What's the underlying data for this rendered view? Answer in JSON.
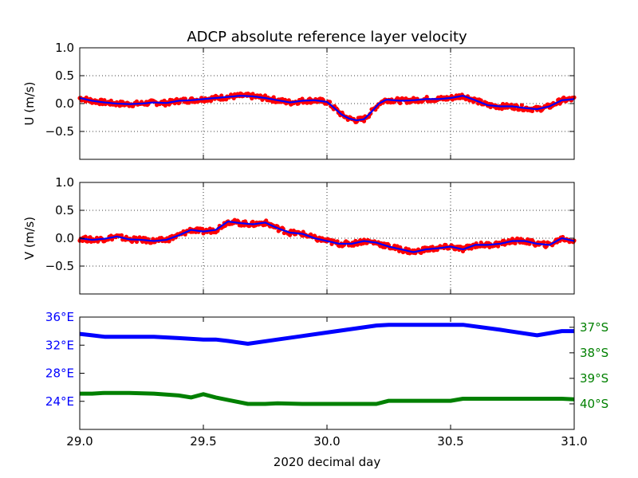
{
  "chart_data": [
    {
      "type": "scatter",
      "title": "ADCP absolute reference layer velocity",
      "ylabel": "U (m/s)",
      "xlabel": "",
      "xlim": [
        29.0,
        31.0
      ],
      "ylim": [
        -1.0,
        1.0
      ],
      "y_ticks": [
        -0.5,
        0.0,
        0.5,
        1.0
      ],
      "y_tick_labels": [
        "−0.5",
        "0.0",
        "0.5",
        "1.0"
      ],
      "x_ticks": [
        29.0,
        29.5,
        30.0,
        30.5,
        31.0
      ],
      "grid": true,
      "colors": {
        "points": "#ff0000",
        "smooth": "#0000ff"
      },
      "series": [
        {
          "kind": "points-with-smooth-line",
          "x": [
            29.0,
            29.05,
            29.1,
            29.15,
            29.2,
            29.25,
            29.3,
            29.35,
            29.4,
            29.45,
            29.5,
            29.55,
            29.6,
            29.65,
            29.7,
            29.75,
            29.8,
            29.85,
            29.9,
            29.95,
            30.0,
            30.03,
            30.06,
            30.09,
            30.12,
            30.15,
            30.18,
            30.21,
            30.24,
            30.3,
            30.35,
            30.4,
            30.45,
            30.5,
            30.55,
            30.6,
            30.65,
            30.7,
            30.75,
            30.8,
            30.85,
            30.9,
            30.95,
            31.0
          ],
          "y": [
            0.1,
            0.05,
            0.02,
            0.0,
            -0.01,
            0.0,
            0.02,
            0.01,
            0.05,
            0.06,
            0.08,
            0.1,
            0.12,
            0.14,
            0.13,
            0.1,
            0.06,
            0.02,
            0.05,
            0.06,
            0.03,
            -0.08,
            -0.2,
            -0.27,
            -0.3,
            -0.28,
            -0.15,
            0.0,
            0.07,
            0.05,
            0.06,
            0.08,
            0.08,
            0.1,
            0.14,
            0.06,
            -0.03,
            -0.05,
            -0.05,
            -0.08,
            -0.1,
            -0.05,
            0.06,
            0.08
          ]
        }
      ]
    },
    {
      "type": "scatter",
      "title": "",
      "ylabel": "V (m/s)",
      "xlabel": "",
      "xlim": [
        29.0,
        31.0
      ],
      "ylim": [
        -1.0,
        1.0
      ],
      "y_ticks": [
        -0.5,
        0.0,
        0.5,
        1.0
      ],
      "y_tick_labels": [
        "−0.5",
        "0.0",
        "0.5",
        "1.0"
      ],
      "x_ticks": [
        29.0,
        29.5,
        30.0,
        30.5,
        31.0
      ],
      "grid": true,
      "colors": {
        "points": "#ff0000",
        "smooth": "#0000ff"
      },
      "series": [
        {
          "kind": "points-with-smooth-line",
          "x": [
            29.0,
            29.05,
            29.1,
            29.15,
            29.2,
            29.25,
            29.3,
            29.35,
            29.4,
            29.45,
            29.5,
            29.55,
            29.6,
            29.65,
            29.7,
            29.75,
            29.8,
            29.85,
            29.9,
            29.95,
            30.0,
            30.05,
            30.1,
            30.15,
            30.2,
            30.25,
            30.3,
            30.35,
            30.4,
            30.45,
            30.5,
            30.55,
            30.6,
            30.65,
            30.7,
            30.75,
            30.8,
            30.85,
            30.9,
            30.95,
            31.0
          ],
          "y": [
            0.0,
            -0.03,
            -0.01,
            0.03,
            -0.02,
            -0.03,
            -0.05,
            -0.03,
            0.05,
            0.15,
            0.12,
            0.15,
            0.3,
            0.27,
            0.25,
            0.28,
            0.18,
            0.1,
            0.08,
            0.0,
            -0.05,
            -0.1,
            -0.1,
            -0.05,
            -0.08,
            -0.15,
            -0.2,
            -0.25,
            -0.2,
            -0.18,
            -0.15,
            -0.2,
            -0.12,
            -0.12,
            -0.1,
            -0.05,
            -0.05,
            -0.1,
            -0.12,
            0.0,
            -0.05
          ]
        }
      ]
    },
    {
      "type": "line",
      "title": "",
      "xlabel": "2020 decimal day",
      "ylabel": "",
      "xlim": [
        29.0,
        31.0
      ],
      "x_ticks": [
        29.0,
        29.5,
        30.0,
        30.5,
        31.0
      ],
      "x_tick_labels": [
        "29.0",
        "29.5",
        "30.0",
        "30.5",
        "31.0"
      ],
      "grid": false,
      "left_axis": {
        "ylim": [
          20,
          36
        ],
        "ticks": [
          24,
          28,
          32,
          36
        ],
        "tick_labels": [
          "24°E",
          "28°E",
          "32°E",
          "36°E"
        ],
        "color": "#0000ff"
      },
      "right_axis": {
        "ylim": [
          41.0,
          36.6
        ],
        "ticks": [
          37,
          38,
          39,
          40
        ],
        "tick_labels": [
          "37°S",
          "38°S",
          "39°S",
          "40°S"
        ],
        "color": "#008000"
      },
      "series": [
        {
          "axis": "left",
          "color": "#0000ff",
          "x": [
            29.0,
            29.05,
            29.1,
            29.2,
            29.3,
            29.4,
            29.5,
            29.55,
            29.6,
            29.68,
            29.8,
            29.9,
            30.0,
            30.1,
            30.2,
            30.25,
            30.4,
            30.55,
            30.7,
            30.85,
            30.95,
            31.0
          ],
          "y": [
            33.6,
            33.4,
            33.2,
            33.2,
            33.2,
            33.0,
            32.8,
            32.8,
            32.6,
            32.2,
            32.8,
            33.3,
            33.8,
            34.3,
            34.8,
            34.9,
            34.9,
            34.9,
            34.2,
            33.4,
            34.0,
            34.0
          ]
        },
        {
          "axis": "right",
          "color": "#008000",
          "x": [
            29.0,
            29.05,
            29.1,
            29.2,
            29.3,
            29.4,
            29.45,
            29.5,
            29.55,
            29.6,
            29.68,
            29.75,
            29.8,
            29.9,
            30.0,
            30.1,
            30.2,
            30.25,
            30.3,
            30.4,
            30.5,
            30.55,
            30.7,
            30.85,
            30.95,
            31.0
          ],
          "y": [
            39.6,
            39.6,
            39.57,
            39.57,
            39.6,
            39.67,
            39.75,
            39.62,
            39.75,
            39.85,
            40.0,
            40.0,
            39.98,
            40.0,
            40.0,
            40.0,
            40.0,
            39.88,
            39.88,
            39.88,
            39.88,
            39.8,
            39.8,
            39.8,
            39.8,
            39.82
          ]
        }
      ]
    }
  ]
}
